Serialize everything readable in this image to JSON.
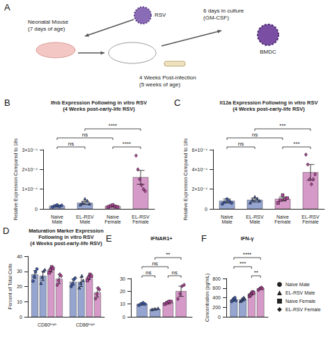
{
  "panel_a": {
    "label": "A",
    "virus": "RSV",
    "neonate": "Neonatal Mouse\n(7 days of age)",
    "culture": "6 days in culture\n(GM-CSF)",
    "cell": "BMDC",
    "timing": "4 Weeks Post-infection\n(5 weeks of age)"
  },
  "chart_data": [
    {
      "panel": "B",
      "type": "bar",
      "title": "Ifnb Expression Following in vitro RSV\n(4 Weeks post-early-life RSV)",
      "y_label": "Relative Expression Compared to 18s",
      "categories": [
        "Naive Male",
        "EL-RSV Male",
        "Naive Female",
        "EL-RSV Female"
      ],
      "values": [
        1.5e-05,
        3e-05,
        1.4e-05,
        0.00016
      ],
      "errors": [
        5e-06,
        8e-06,
        4e-06,
        3.5e-05
      ],
      "points": [
        [
          1e-05,
          1.5e-05,
          2e-05,
          1.2e-05,
          1.8e-05
        ],
        [
          2e-05,
          3e-05,
          5e-05,
          4e-05,
          2.5e-05
        ],
        [
          1e-05,
          1.5e-05,
          2e-05,
          1.2e-05,
          1e-05
        ],
        [
          0.00027,
          0.0002,
          0.00015,
          0.00012,
          0.0001,
          9e-05
        ]
      ],
      "colors": [
        "#3f5ba9",
        "#3f5ba9",
        "#b5479b",
        "#b5479b"
      ],
      "markers": [
        "circle",
        "triangle",
        "square",
        "diamond"
      ],
      "ylim": [
        0,
        0.0003
      ],
      "yticks": [
        0,
        {
          "value": 0.0001,
          "label": "1×10⁻⁴"
        },
        {
          "value": 0.0002,
          "label": "2×10⁻⁴"
        },
        {
          "value": 0.0003,
          "label": "3×10⁻⁴"
        }
      ],
      "comparisons": [
        {
          "a": 0,
          "b": 1,
          "label": "ns"
        },
        {
          "a": 2,
          "b": 3,
          "label": "****"
        },
        {
          "a": 0,
          "b": 2,
          "label": "ns"
        },
        {
          "a": 1,
          "b": 3,
          "label": "****"
        }
      ],
      "grid": false
    },
    {
      "panel": "C",
      "type": "bar",
      "title": "Il12a Expression Following in vitro RSV\n(4 Weeks post-early-life RSV)",
      "y_label": "Relative Expression Compared to 18s",
      "categories": [
        "Naive Male",
        "EL-RSV Male",
        "Naive Female",
        "EL-RSV Female"
      ],
      "values": [
        8e-05,
        9e-05,
        0.0001,
        0.00037
      ],
      "errors": [
        2e-05,
        2e-05,
        2e-05,
        8e-05
      ],
      "points": [
        [
          5e-05,
          7e-05,
          0.0001,
          8e-05,
          6e-05
        ],
        [
          6e-05,
          9e-05,
          0.00012,
          0.0001,
          8e-05
        ],
        [
          6e-05,
          9e-05,
          0.00014,
          0.0001,
          0.00011
        ],
        [
          0.00055,
          0.00045,
          0.0003,
          0.00025,
          0.0003,
          0.00035
        ]
      ],
      "colors": [
        "#3f5ba9",
        "#3f5ba9",
        "#b5479b",
        "#b5479b"
      ],
      "markers": [
        "circle",
        "triangle",
        "square",
        "diamond"
      ],
      "ylim": [
        0,
        0.0006
      ],
      "yticks": [
        0,
        {
          "value": 0.0002,
          "label": "2×10⁻⁴"
        },
        {
          "value": 0.0004,
          "label": "4×10⁻⁴"
        },
        {
          "value": 0.0006,
          "label": "6×10⁻⁴"
        }
      ],
      "comparisons": [
        {
          "a": 0,
          "b": 1,
          "label": "ns"
        },
        {
          "a": 2,
          "b": 3,
          "label": "***"
        },
        {
          "a": 0,
          "b": 2,
          "label": "ns"
        },
        {
          "a": 1,
          "b": 3,
          "label": "***"
        }
      ],
      "grid": false
    },
    {
      "panel": "D",
      "type": "bar",
      "title": "Maturation Marker Expression\nFollowing in vitro RSV\n(4 Weeks post-early-life RSV)",
      "y_label": "Percent of Total Cells",
      "categories": [
        "CD80ʰⁱᵍʰ",
        "CD86ʰⁱᵍʰ"
      ],
      "series": [
        {
          "name": "Naive Male",
          "color": "#3f5ba9",
          "marker": "circle",
          "values": [
            28,
            23
          ],
          "errors": [
            2.5,
            2
          ],
          "points": [
            [
              24,
              27,
              30,
              32
            ],
            [
              20,
              22,
              25,
              26
            ]
          ]
        },
        {
          "name": "EL-RSV Male",
          "color": "#3f5ba9",
          "marker": "triangle",
          "values": [
            27,
            23
          ],
          "errors": [
            3,
            3
          ],
          "points": [
            [
              22,
              26,
              30,
              31
            ],
            [
              19,
              22,
              27,
              24
            ]
          ]
        },
        {
          "name": "Naive Female",
          "color": "#b5479b",
          "marker": "square",
          "values": [
            31,
            26
          ],
          "errors": [
            1.5,
            1.5
          ],
          "points": [
            [
              29,
              31,
              33,
              32
            ],
            [
              24,
              26,
              28,
              27
            ]
          ]
        },
        {
          "name": "EL-RSV Female",
          "color": "#b5479b",
          "marker": "diamond",
          "values": [
            25,
            16
          ],
          "errors": [
            3,
            3
          ],
          "points": [
            [
              21,
              24,
              28,
              27
            ],
            [
              12,
              15,
              19,
              18
            ]
          ]
        }
      ],
      "ylim": [
        0,
        40
      ],
      "yticks": [
        0,
        10,
        20,
        30,
        40
      ],
      "grid": false
    },
    {
      "panel": "E",
      "type": "bar",
      "title": "IFNAR1+",
      "categories": [
        null
      ],
      "tick_labels": "y",
      "series": [
        {
          "name": "Naive Male",
          "color": "#3f5ba9",
          "marker": "circle",
          "values": [
            10
          ],
          "errors": [
            0.8
          ],
          "points": [
            [
              9,
              10,
              11,
              10
            ]
          ]
        },
        {
          "name": "EL-RSV Male",
          "color": "#3f5ba9",
          "marker": "triangle",
          "values": [
            6
          ],
          "errors": [
            0.5
          ],
          "points": [
            [
              5.5,
              6,
              6.5
            ]
          ]
        },
        {
          "name": "Naive Female",
          "color": "#b5479b",
          "marker": "square",
          "values": [
            11
          ],
          "errors": [
            1
          ],
          "points": [
            [
              10,
              11,
              12,
              12
            ]
          ]
        },
        {
          "name": "EL-RSV Female",
          "color": "#b5479b",
          "marker": "diamond",
          "values": [
            20
          ],
          "errors": [
            4
          ],
          "points": [
            [
              14,
              18,
              24,
              25
            ]
          ]
        }
      ],
      "ylim": [
        0,
        30
      ],
      "yticks": [
        0,
        10,
        20,
        30
      ],
      "comparisons": [
        {
          "a": 0,
          "b": 1,
          "label": "ns"
        },
        {
          "a": 2,
          "b": 3,
          "label": "ns"
        },
        {
          "a": 0,
          "b": 2,
          "label": "ns"
        },
        {
          "a": 1,
          "b": 3,
          "label": "**"
        }
      ],
      "grid": false
    },
    {
      "panel": "F",
      "type": "bar",
      "title": "IFN-γ",
      "y_label": "Concentration (pg/mL)",
      "categories": [
        null
      ],
      "tick_labels": "y",
      "legend": "right",
      "series": [
        {
          "name": "Naive Male",
          "color": "#3f5ba9",
          "marker": "circle",
          "values": [
            360
          ],
          "errors": [
            30
          ],
          "points": [
            [
              320,
              350,
              380,
              400,
              340
            ]
          ]
        },
        {
          "name": "EL-RSV Male",
          "color": "#3f5ba9",
          "marker": "triangle",
          "values": [
            360
          ],
          "errors": [
            30
          ],
          "points": [
            [
              320,
              340,
              370,
              400,
              370
            ]
          ]
        },
        {
          "name": "Naive Female",
          "color": "#b5479b",
          "marker": "square",
          "values": [
            480
          ],
          "errors": [
            25
          ],
          "points": [
            [
              430,
              460,
              490,
              520,
              500
            ]
          ]
        },
        {
          "name": "EL-RSV Female",
          "color": "#b5479b",
          "marker": "diamond",
          "values": [
            590
          ],
          "errors": [
            15
          ],
          "points": [
            [
              560,
              580,
              600,
              610,
              590
            ]
          ]
        }
      ],
      "ylim": [
        0,
        800
      ],
      "yticks": [
        0,
        200,
        400,
        600,
        800
      ],
      "comparisons": [
        {
          "a": 2,
          "b": 3,
          "label": "**"
        },
        {
          "a": 0,
          "b": 2,
          "label": "***"
        },
        {
          "a": 0,
          "b": 3,
          "label": "****"
        }
      ],
      "grid": false
    }
  ]
}
